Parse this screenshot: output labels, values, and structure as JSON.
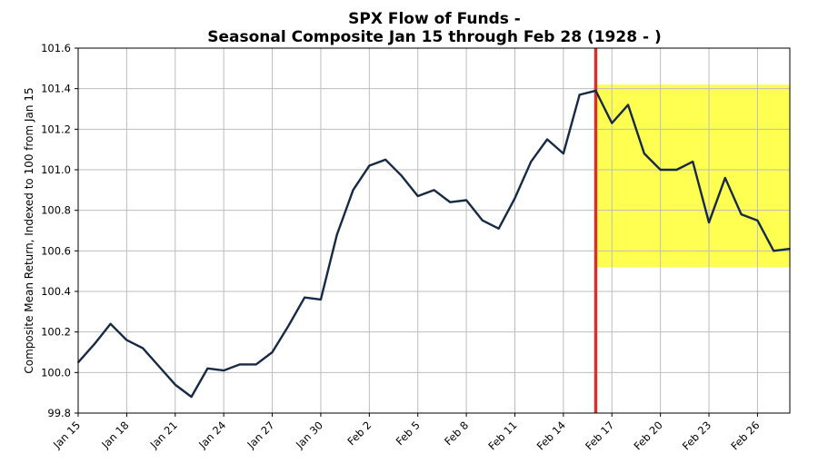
{
  "chart_data": {
    "type": "line",
    "title_lines": [
      "SPX Flow of Funds -",
      "Seasonal Composite Jan 15 through Feb 28 (1928 - )"
    ],
    "xlabel": "",
    "ylabel": "Composite Mean Return, Indexed to 100 from Jan 15",
    "ylim": [
      99.8,
      101.6
    ],
    "y_ticks": [
      "99.8",
      "100.0",
      "100.2",
      "100.4",
      "100.6",
      "100.8",
      "101.0",
      "101.2",
      "101.4",
      "101.6"
    ],
    "x_ticks": [
      {
        "label": "Jan 15",
        "day": 0
      },
      {
        "label": "Jan 18",
        "day": 3
      },
      {
        "label": "Jan 21",
        "day": 6
      },
      {
        "label": "Jan 24",
        "day": 9
      },
      {
        "label": "Jan 27",
        "day": 12
      },
      {
        "label": "Jan 30",
        "day": 15
      },
      {
        "label": "Feb 2",
        "day": 18
      },
      {
        "label": "Feb 5",
        "day": 21
      },
      {
        "label": "Feb 8",
        "day": 24
      },
      {
        "label": "Feb 11",
        "day": 27
      },
      {
        "label": "Feb 14",
        "day": 30
      },
      {
        "label": "Feb 17",
        "day": 33
      },
      {
        "label": "Feb 20",
        "day": 36
      },
      {
        "label": "Feb 23",
        "day": 39
      },
      {
        "label": "Feb 26",
        "day": 42
      }
    ],
    "x_dates": [
      "Jan 15",
      "Jan 16",
      "Jan 17",
      "Jan 18",
      "Jan 19",
      "Jan 20",
      "Jan 21",
      "Jan 22",
      "Jan 23",
      "Jan 24",
      "Jan 25",
      "Jan 26",
      "Jan 27",
      "Jan 28",
      "Jan 29",
      "Jan 30",
      "Jan 31",
      "Feb 1",
      "Feb 2",
      "Feb 3",
      "Feb 4",
      "Feb 5",
      "Feb 6",
      "Feb 7",
      "Feb 8",
      "Feb 9",
      "Feb 10",
      "Feb 11",
      "Feb 12",
      "Feb 13",
      "Feb 14",
      "Feb 15",
      "Feb 16",
      "Feb 17",
      "Feb 18",
      "Feb 19",
      "Feb 20",
      "Feb 21",
      "Feb 22",
      "Feb 23",
      "Feb 24",
      "Feb 25",
      "Feb 26",
      "Feb 27",
      "Feb 28"
    ],
    "series": [
      {
        "color": "#172a45",
        "values": [
          100.05,
          100.14,
          100.24,
          100.16,
          100.12,
          100.03,
          99.94,
          99.88,
          100.02,
          100.01,
          100.04,
          100.04,
          100.1,
          100.23,
          100.37,
          100.36,
          100.68,
          100.9,
          101.02,
          101.05,
          100.97,
          100.87,
          100.9,
          100.84,
          100.85,
          100.75,
          100.71,
          100.86,
          101.04,
          101.15,
          101.08,
          101.37,
          101.39,
          101.23,
          101.32,
          101.08,
          101.0,
          101.0,
          101.04,
          100.74,
          100.96,
          100.78,
          100.75,
          100.6,
          100.61
        ]
      }
    ],
    "vertical_line": {
      "date": "Feb 16",
      "color": "#d9302c"
    },
    "highlight_region": {
      "x_from": "Feb 16",
      "x_to": "Feb 28",
      "y_from": 100.52,
      "y_to": 101.42,
      "color": "#ffff33"
    },
    "grid": true
  }
}
